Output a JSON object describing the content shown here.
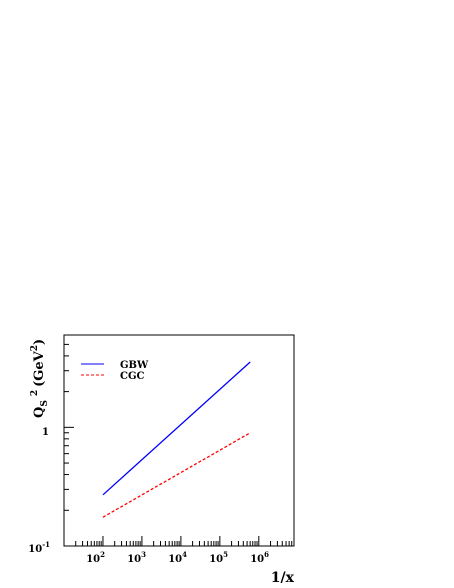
{
  "chart_data": {
    "type": "line",
    "xscale": "log",
    "yscale": "log",
    "xlim": [
      10,
      8000000
    ],
    "ylim": [
      0.1,
      6
    ],
    "x_ticks": [
      {
        "base": "10",
        "exp": "2"
      },
      {
        "base": "10",
        "exp": "3"
      },
      {
        "base": "10",
        "exp": "4"
      },
      {
        "base": "10",
        "exp": "5"
      },
      {
        "base": "10",
        "exp": "6"
      }
    ],
    "y_ticks": [
      {
        "base": "10",
        "exp": "-1"
      },
      {
        "base": "1",
        "exp": ""
      }
    ],
    "xlabel": "1/x",
    "ylabel": {
      "q": "Q",
      "sub": "S",
      "sq": "2",
      "unit": "(GeV",
      "unit_sup": "2",
      "close": ")"
    },
    "grid": false,
    "legend_position": "top-left",
    "series": [
      {
        "name": "GBW",
        "color": "#0000ff",
        "dash": "solid",
        "x": [
          100,
          600000
        ],
        "y": [
          0.27,
          3.55
        ]
      },
      {
        "name": "CGC",
        "color": "#ff0000",
        "dash": "dashed",
        "x": [
          100,
          600000
        ],
        "y": [
          0.175,
          0.9
        ]
      }
    ]
  }
}
